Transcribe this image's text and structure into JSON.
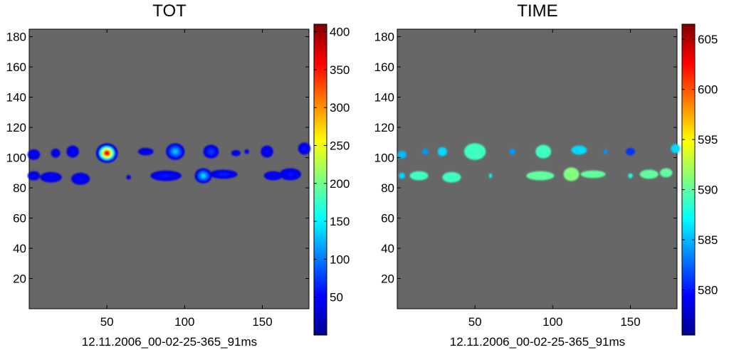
{
  "chart_data": [
    {
      "type": "heatmap",
      "title": "TOT",
      "xlabel": "12.11.2006_00-02-25-365_91ms",
      "ylabel": "",
      "xlim": [
        0,
        180
      ],
      "ylim": [
        0,
        185
      ],
      "x_ticks": [
        50,
        100,
        150
      ],
      "y_ticks": [
        20,
        40,
        60,
        80,
        100,
        120,
        140,
        160,
        180
      ],
      "background": "#676767",
      "colormap": "jet",
      "colorbar": {
        "min": 0,
        "max": 410,
        "ticks": [
          50,
          100,
          150,
          200,
          250,
          300,
          350,
          400
        ]
      },
      "blobs": [
        {
          "x": 3,
          "y": 102,
          "rx": 4,
          "ry": 3.5,
          "v": 45
        },
        {
          "x": 17,
          "y": 103,
          "rx": 3,
          "ry": 3,
          "v": 45
        },
        {
          "x": 28,
          "y": 104,
          "rx": 4,
          "ry": 4,
          "v": 55
        },
        {
          "x": 50,
          "y": 103,
          "rx": 7,
          "ry": 6.5,
          "v": 400
        },
        {
          "x": 75,
          "y": 104,
          "rx": 5,
          "ry": 2.5,
          "v": 40
        },
        {
          "x": 94,
          "y": 104,
          "rx": 6,
          "ry": 5.5,
          "v": 140
        },
        {
          "x": 117,
          "y": 104,
          "rx": 5,
          "ry": 4.5,
          "v": 80
        },
        {
          "x": 133,
          "y": 103,
          "rx": 3,
          "ry": 2,
          "v": 40
        },
        {
          "x": 140,
          "y": 104,
          "rx": 1.5,
          "ry": 1.5,
          "v": 40
        },
        {
          "x": 153,
          "y": 104,
          "rx": 4,
          "ry": 4,
          "v": 55
        },
        {
          "x": 177,
          "y": 106,
          "rx": 4,
          "ry": 4,
          "v": 60
        },
        {
          "x": 3,
          "y": 88,
          "rx": 4,
          "ry": 3,
          "v": 45
        },
        {
          "x": 14,
          "y": 87,
          "rx": 7,
          "ry": 3.5,
          "v": 50
        },
        {
          "x": 33,
          "y": 86,
          "rx": 6,
          "ry": 4,
          "v": 55
        },
        {
          "x": 64,
          "y": 87,
          "rx": 1.5,
          "ry": 1.5,
          "v": 40
        },
        {
          "x": 88,
          "y": 88,
          "rx": 10,
          "ry": 3.5,
          "v": 60
        },
        {
          "x": 112,
          "y": 88,
          "rx": 5.5,
          "ry": 5,
          "v": 150
        },
        {
          "x": 125,
          "y": 89,
          "rx": 9,
          "ry": 3,
          "v": 65
        },
        {
          "x": 157,
          "y": 88,
          "rx": 6,
          "ry": 3,
          "v": 55
        },
        {
          "x": 168,
          "y": 89,
          "rx": 7,
          "ry": 4,
          "v": 60
        }
      ]
    },
    {
      "type": "heatmap",
      "title": "TIME",
      "xlabel": "12.11.2006_00-02-25-365_91ms",
      "ylabel": "",
      "xlim": [
        0,
        180
      ],
      "ylim": [
        0,
        185
      ],
      "x_ticks": [
        50,
        100,
        150
      ],
      "y_ticks": [
        20,
        40,
        60,
        80,
        100,
        120,
        140,
        160,
        180
      ],
      "background": "#676767",
      "colormap": "jet",
      "colorbar": {
        "min": 575.5,
        "max": 606.5,
        "ticks": [
          580,
          585,
          590,
          595,
          600,
          605
        ]
      },
      "blobs": [
        {
          "x": 3,
          "y": 102,
          "rx": 3,
          "ry": 2.5,
          "v": 585
        },
        {
          "x": 18,
          "y": 104,
          "rx": 2,
          "ry": 2,
          "v": 584
        },
        {
          "x": 29,
          "y": 104,
          "rx": 3,
          "ry": 3,
          "v": 586
        },
        {
          "x": 50,
          "y": 104,
          "rx": 7,
          "ry": 5.5,
          "v": 589
        },
        {
          "x": 74,
          "y": 104,
          "rx": 2,
          "ry": 2,
          "v": 584
        },
        {
          "x": 94,
          "y": 104,
          "rx": 5,
          "ry": 4.5,
          "v": 589
        },
        {
          "x": 117,
          "y": 105,
          "rx": 5,
          "ry": 3,
          "v": 586
        },
        {
          "x": 134,
          "y": 104,
          "rx": 1,
          "ry": 2,
          "v": 584
        },
        {
          "x": 150,
          "y": 104,
          "rx": 3,
          "ry": 2.5,
          "v": 581
        },
        {
          "x": 179,
          "y": 106,
          "rx": 3,
          "ry": 3,
          "v": 586
        },
        {
          "x": 3,
          "y": 88,
          "rx": 2,
          "ry": 2,
          "v": 586
        },
        {
          "x": 14,
          "y": 88,
          "rx": 6,
          "ry": 3,
          "v": 589
        },
        {
          "x": 35,
          "y": 87,
          "rx": 6,
          "ry": 3.5,
          "v": 589
        },
        {
          "x": 60,
          "y": 88,
          "rx": 1,
          "ry": 1.5,
          "v": 587
        },
        {
          "x": 92,
          "y": 88,
          "rx": 9,
          "ry": 3,
          "v": 590
        },
        {
          "x": 112,
          "y": 89,
          "rx": 5,
          "ry": 4.5,
          "v": 591
        },
        {
          "x": 126,
          "y": 89,
          "rx": 8,
          "ry": 2.5,
          "v": 590
        },
        {
          "x": 150,
          "y": 88,
          "rx": 1.5,
          "ry": 1.5,
          "v": 588
        },
        {
          "x": 162,
          "y": 89,
          "rx": 6,
          "ry": 3,
          "v": 590
        },
        {
          "x": 173,
          "y": 90,
          "rx": 4,
          "ry": 3,
          "v": 590
        }
      ]
    }
  ]
}
